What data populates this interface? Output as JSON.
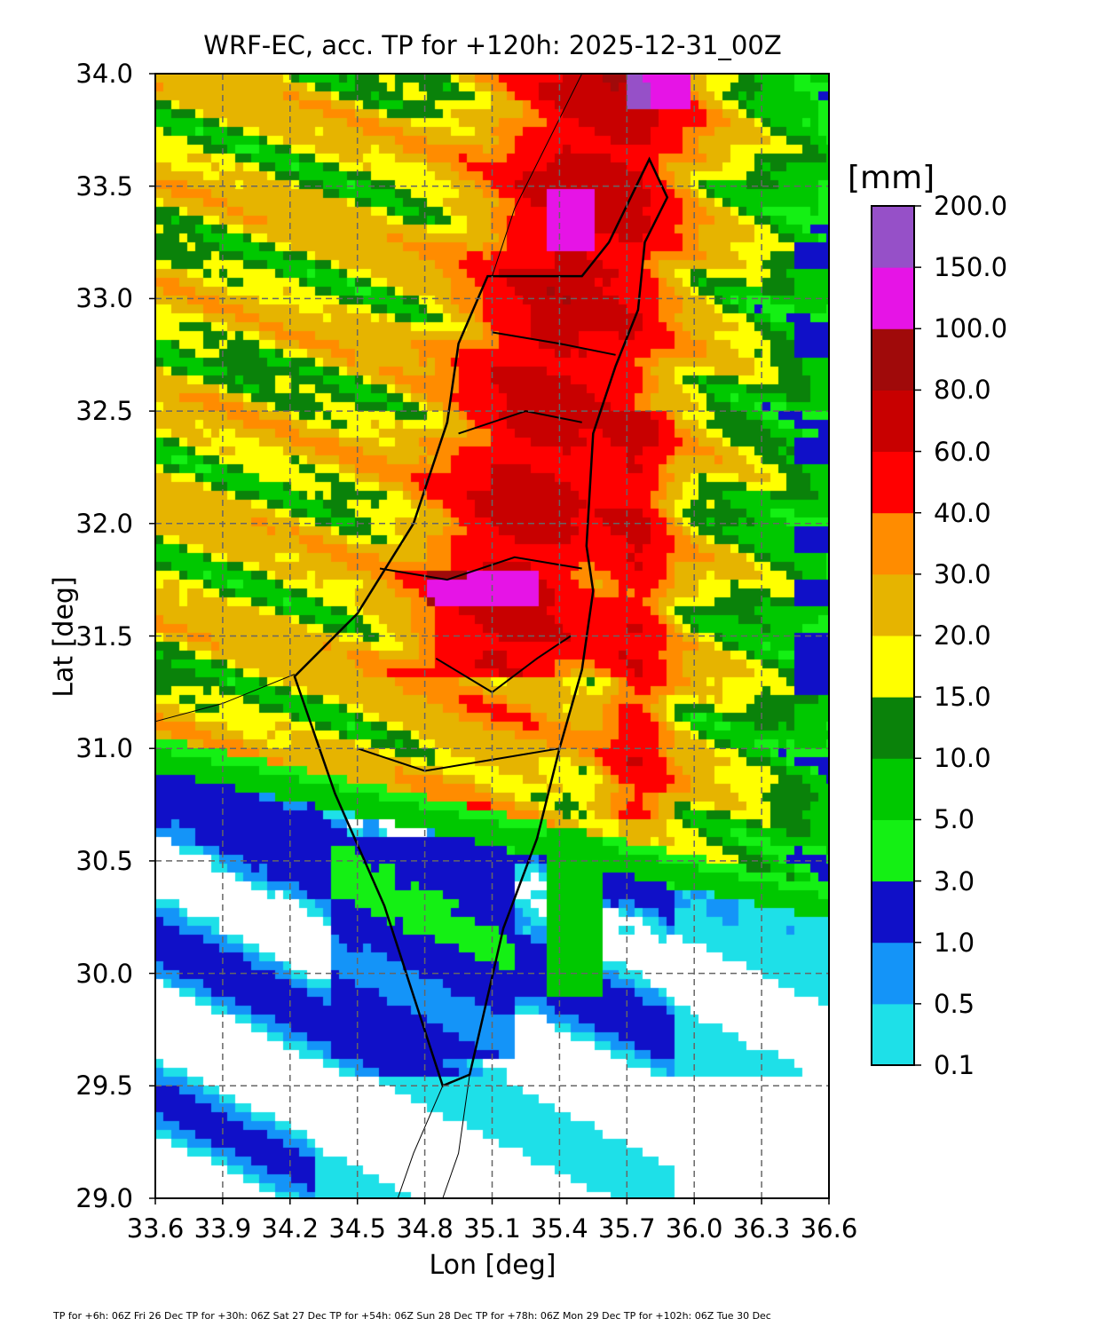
{
  "chart_data": {
    "type": "heatmap",
    "title": "WRF-EC, acc. TP for +120h: 2025-12-31_00Z",
    "xlabel": "Lon [deg]",
    "ylabel": "Lat [deg]",
    "xlim": [
      33.6,
      36.6
    ],
    "ylim": [
      29.0,
      34.0
    ],
    "xticks": [
      "33.6",
      "33.9",
      "34.2",
      "34.5",
      "34.8",
      "35.1",
      "35.4",
      "35.7",
      "36.0",
      "36.3",
      "36.6"
    ],
    "yticks": [
      "29.0",
      "29.5",
      "30.0",
      "30.5",
      "31.0",
      "31.5",
      "32.0",
      "32.5",
      "33.0",
      "33.5",
      "34.0"
    ],
    "grid": true,
    "colorbar": {
      "unit": "[mm]",
      "levels": [
        "0.1",
        "0.5",
        "1.0",
        "3.0",
        "5.0",
        "10.0",
        "15.0",
        "20.0",
        "30.0",
        "40.0",
        "60.0",
        "80.0",
        "100.0",
        "150.0",
        "200.0"
      ],
      "colors": [
        "#1ee0e8",
        "#1494f8",
        "#1010c8",
        "#14f014",
        "#00c800",
        "#0a820a",
        "#ffff00",
        "#e6b400",
        "#ff8c00",
        "#ff0000",
        "#c80000",
        "#a00a0a",
        "#e614e6",
        "#9650c8"
      ],
      "placement": "right"
    }
  },
  "footer": "TP for +6h: 06Z Fri 26 Dec    TP for +30h: 06Z Sat 27 Dec TP for +54h: 06Z Sun 28 Dec TP for +78h: 06Z Mon 29 Dec TP for +102h: 06Z Tue 30 Dec"
}
